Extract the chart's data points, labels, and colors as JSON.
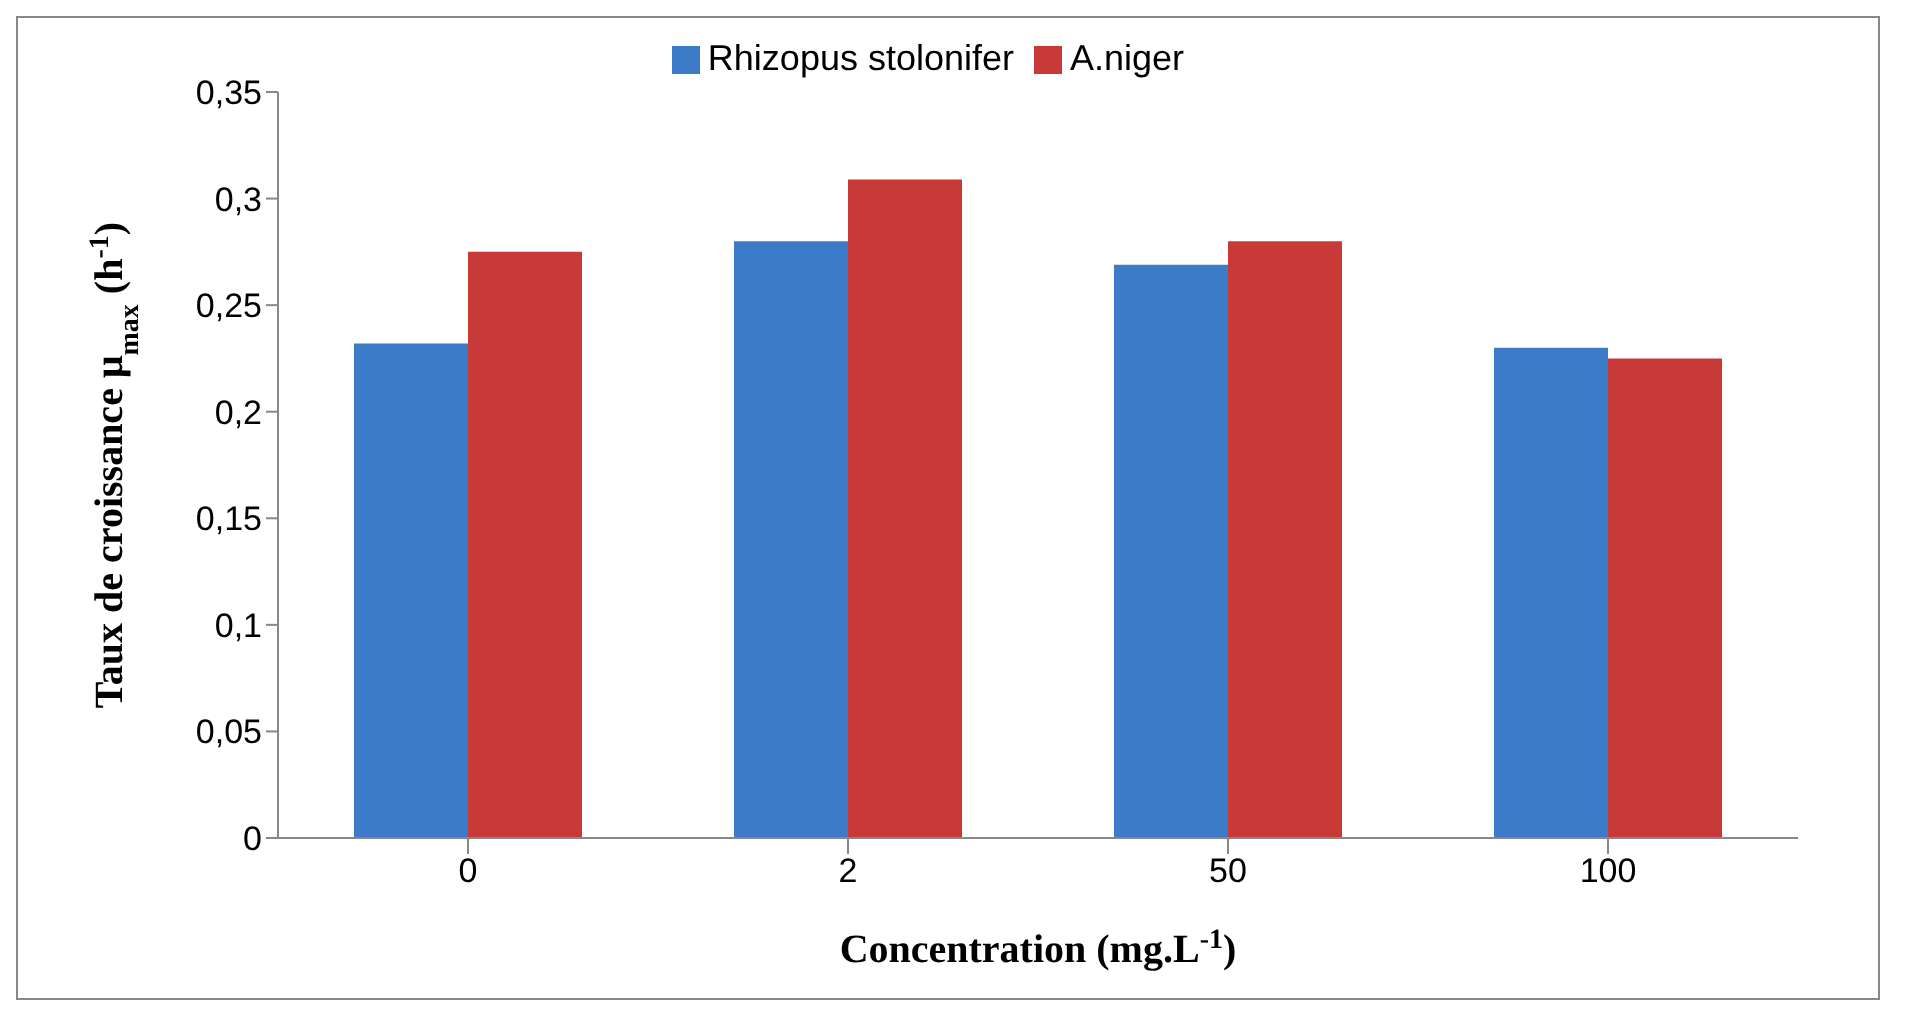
{
  "chart_data": {
    "type": "bar",
    "xlabel": "Concentration (mg.L$^{-1}$)",
    "ylabel": "Taux de croissance μ$_{max}$  (h$^{-1}$)",
    "categories": [
      "0",
      "2",
      "50",
      "100"
    ],
    "series": [
      {
        "name": "Rhizopus stolonifer",
        "color": "#3b7bc8",
        "values": [
          0.232,
          0.28,
          0.269,
          0.23
        ]
      },
      {
        "name": "A.niger",
        "color": "#c83a38",
        "values": [
          0.275,
          0.309,
          0.28,
          0.225
        ]
      }
    ],
    "ylim": [
      0,
      0.35
    ],
    "yticks": [
      0,
      {
        "value": 0.05,
        "label": "0,05"
      },
      {
        "value": 0.1,
        "label": "0,1"
      },
      {
        "value": 0.15,
        "label": "0,15"
      },
      {
        "value": 0.2,
        "label": "0,2"
      },
      {
        "value": 0.25,
        "label": "0,25"
      },
      {
        "value": 0.3,
        "label": "0,3"
      },
      {
        "value": 0.35,
        "label": "0,35"
      }
    ],
    "grid": false,
    "legend": "top"
  }
}
